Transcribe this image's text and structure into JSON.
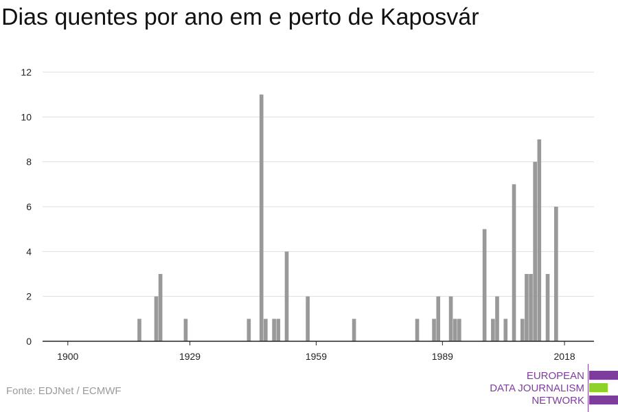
{
  "title": "Dias quentes por ano em e perto de Kaposvár",
  "source": "Fonte: EDJNet / ECMWF",
  "logo": {
    "lines": [
      "EUROPEAN",
      "DATA JOURNALISM",
      "NETWORK"
    ],
    "colors": {
      "purple": "#7c3d9c",
      "green": "#8fd12b"
    }
  },
  "chart_data": {
    "type": "bar",
    "title": "Dias quentes por ano em e perto de Kaposvár",
    "xlabel": "",
    "ylabel": "",
    "xlim": [
      1894,
      2025
    ],
    "ylim": [
      0,
      12
    ],
    "x_ticks": [
      "1900",
      "1929",
      "1959",
      "1989",
      "2018"
    ],
    "y_ticks": [
      "0",
      "2",
      "4",
      "6",
      "8",
      "10",
      "12"
    ],
    "grid": "horizontal",
    "bar_color": "#999999",
    "years": [
      1917,
      1921,
      1922,
      1928,
      1943,
      1946,
      1947,
      1949,
      1950,
      1952,
      1957,
      1968,
      1983,
      1987,
      1988,
      1991,
      1992,
      1993,
      1999,
      2001,
      2002,
      2004,
      2006,
      2008,
      2009,
      2010,
      2011,
      2012,
      2014,
      2016
    ],
    "values": [
      1,
      2,
      3,
      1,
      1,
      11,
      1,
      1,
      1,
      4,
      2,
      1,
      1,
      1,
      2,
      2,
      1,
      1,
      5,
      1,
      2,
      1,
      7,
      1,
      3,
      3,
      8,
      9,
      3,
      6
    ]
  }
}
